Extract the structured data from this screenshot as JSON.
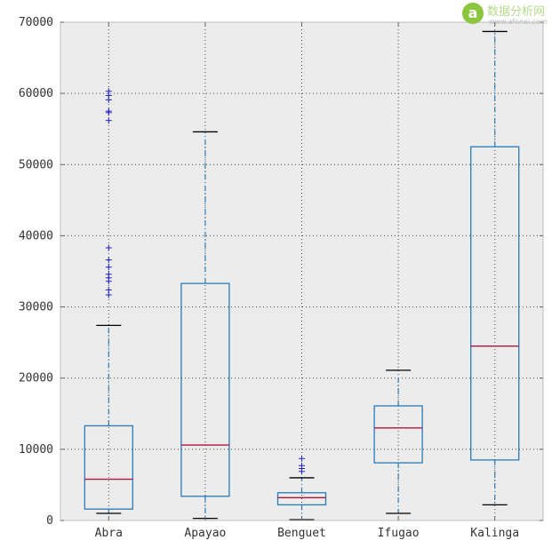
{
  "chart_data": {
    "type": "box",
    "categories": [
      "Abra",
      "Apayao",
      "Benguet",
      "Ifugao",
      "Kalinga"
    ],
    "ylim": [
      0,
      70000
    ],
    "yticks": [
      0,
      10000,
      20000,
      30000,
      40000,
      50000,
      60000,
      70000
    ],
    "grid": true,
    "boxes": [
      {
        "whisker_low": 1000,
        "q1": 1600,
        "median": 5800,
        "q3": 13300,
        "whisker_high": 27400,
        "outliers": [
          31700,
          32400,
          33600,
          34100,
          34600,
          35600,
          36600,
          38300,
          56200,
          57300,
          57500,
          59100,
          59700,
          60300
        ]
      },
      {
        "whisker_low": 300,
        "q1": 3400,
        "median": 10600,
        "q3": 33300,
        "whisker_high": 54600,
        "outliers": []
      },
      {
        "whisker_low": 100,
        "q1": 2200,
        "median": 3200,
        "q3": 3900,
        "whisker_high": 6000,
        "outliers": [
          6900,
          7300,
          7700,
          8700
        ]
      },
      {
        "whisker_low": 1000,
        "q1": 8100,
        "median": 13000,
        "q3": 16100,
        "whisker_high": 21100,
        "outliers": []
      },
      {
        "whisker_low": 2200,
        "q1": 8500,
        "median": 24500,
        "q3": 52500,
        "whisker_high": 68700,
        "outliers": []
      }
    ],
    "colors": {
      "box": "#2a7ab8",
      "median": "#b5123c",
      "whisker_cap": "#000000",
      "flier": "#1f1fc4",
      "plot_bg": "#ececec",
      "grid": "#444444",
      "frame": "#bcbcbc"
    }
  },
  "watermark": {
    "logo_letter": "a",
    "title": "数据分析网",
    "url": "www.afenxi.com"
  }
}
